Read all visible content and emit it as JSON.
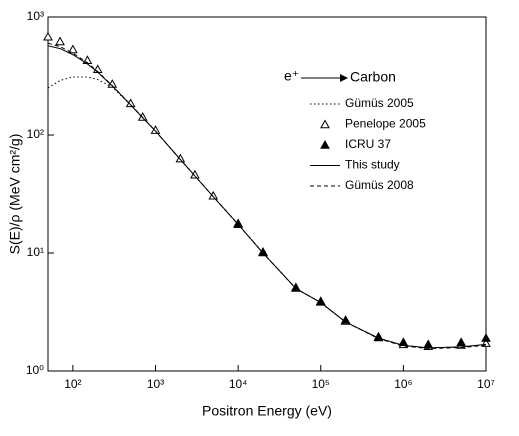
{
  "chart_data": {
    "type": "line",
    "xlabel": "Positron Energy (eV)",
    "ylabel": "S(E)/ρ (MeV cm²/g)",
    "annotations": [
      "e⁺",
      "Carbon"
    ],
    "log_x": true,
    "log_y": true,
    "xlim": [
      50,
      10000000
    ],
    "ylim": [
      1,
      1000
    ],
    "xticks": [
      {
        "value": 100,
        "label": "10²"
      },
      {
        "value": 1000,
        "label": "10³"
      },
      {
        "value": 10000,
        "label": "10⁴"
      },
      {
        "value": 100000,
        "label": "10⁵"
      },
      {
        "value": 1000000,
        "label": "10⁶"
      },
      {
        "value": 10000000,
        "label": "10⁷"
      }
    ],
    "yticks": [
      {
        "value": 1,
        "label": "10⁰"
      },
      {
        "value": 10,
        "label": "10¹"
      },
      {
        "value": 100,
        "label": "10²"
      },
      {
        "value": 1000,
        "label": "10³"
      }
    ],
    "x": [
      50,
      70,
      100,
      150,
      200,
      300,
      500,
      700,
      1000,
      2000,
      3000,
      5000,
      10000,
      20000,
      50000,
      100000,
      200000,
      500000,
      1000000,
      2000000,
      5000000,
      10000000
    ],
    "series": [
      {
        "name": "Gümüs 2005",
        "color": "#000000",
        "line": "dotted",
        "values": [
          250,
          290,
          310,
          310,
          295,
          255,
          180,
          140,
          108,
          62,
          45,
          30,
          17.5,
          10,
          5,
          3.8,
          2.6,
          1.9,
          1.65,
          1.57,
          1.6,
          1.68
        ]
      },
      {
        "name": "Penelope 2005",
        "color": "#000000",
        "marker": "open-triangle",
        "values": [
          680,
          620,
          530,
          430,
          360,
          270,
          185,
          142,
          110,
          63,
          46,
          30.5,
          17.8,
          10.1,
          5.05,
          3.85,
          2.65,
          1.92,
          1.68,
          1.62,
          1.66,
          1.72
        ]
      },
      {
        "name": "ICRU 37",
        "color": "#000000",
        "marker": "filled-triangle",
        "values": [
          null,
          null,
          null,
          null,
          null,
          null,
          null,
          null,
          null,
          null,
          null,
          null,
          17.5,
          10.2,
          5.1,
          3.9,
          2.7,
          1.95,
          1.75,
          1.68,
          1.75,
          1.9
        ]
      },
      {
        "name": "This study",
        "color": "#000000",
        "line": "solid",
        "values": [
          570,
          540,
          480,
          400,
          340,
          260,
          180,
          140,
          108,
          62,
          45,
          30,
          17.5,
          10,
          5,
          3.8,
          2.6,
          1.9,
          1.65,
          1.57,
          1.6,
          1.68
        ]
      },
      {
        "name": "Gümüs 2008",
        "color": "#000000",
        "line": "dashed",
        "values": [
          600,
          560,
          495,
          410,
          345,
          262,
          181,
          141,
          108,
          62,
          45,
          30,
          17.5,
          10,
          5,
          3.8,
          2.6,
          1.88,
          1.63,
          1.55,
          1.58,
          1.65
        ]
      }
    ]
  }
}
